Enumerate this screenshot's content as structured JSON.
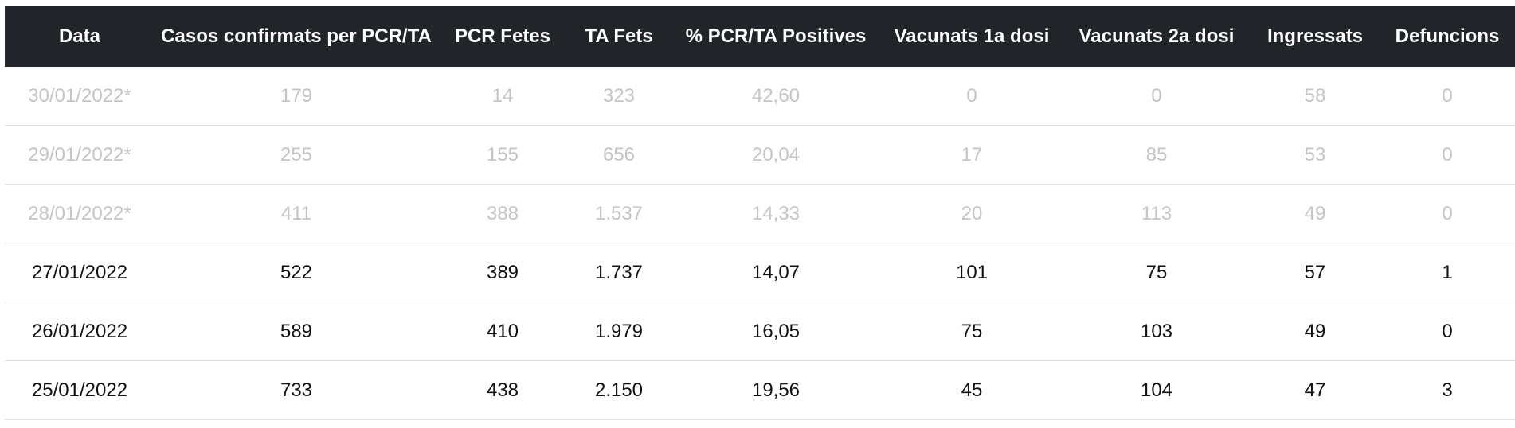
{
  "table": {
    "headers": [
      "Data",
      "Casos confirmats per PCR/TA",
      "PCR Fetes",
      "TA Fets",
      "% PCR/TA Positives",
      "Vacunats 1a dosi",
      "Vacunats 2a dosi",
      "Ingressats",
      "Defuncions"
    ],
    "rows": [
      {
        "provisional": true,
        "cells": [
          "30/01/2022*",
          "179",
          "14",
          "323",
          "42,60",
          "0",
          "0",
          "58",
          "0"
        ]
      },
      {
        "provisional": true,
        "cells": [
          "29/01/2022*",
          "255",
          "155",
          "656",
          "20,04",
          "17",
          "85",
          "53",
          "0"
        ]
      },
      {
        "provisional": true,
        "cells": [
          "28/01/2022*",
          "411",
          "388",
          "1.537",
          "14,33",
          "20",
          "113",
          "49",
          "0"
        ]
      },
      {
        "provisional": false,
        "cells": [
          "27/01/2022",
          "522",
          "389",
          "1.737",
          "14,07",
          "101",
          "75",
          "57",
          "1"
        ]
      },
      {
        "provisional": false,
        "cells": [
          "26/01/2022",
          "589",
          "410",
          "1.979",
          "16,05",
          "75",
          "103",
          "49",
          "0"
        ]
      },
      {
        "provisional": false,
        "cells": [
          "25/01/2022",
          "733",
          "438",
          "2.150",
          "19,56",
          "45",
          "104",
          "47",
          "3"
        ]
      }
    ]
  },
  "colors": {
    "header_bg": "#212529",
    "header_text": "#ffffff",
    "provisional_text": "#c4c4c4",
    "row_text": "#111111",
    "row_border": "#dee2e6"
  }
}
